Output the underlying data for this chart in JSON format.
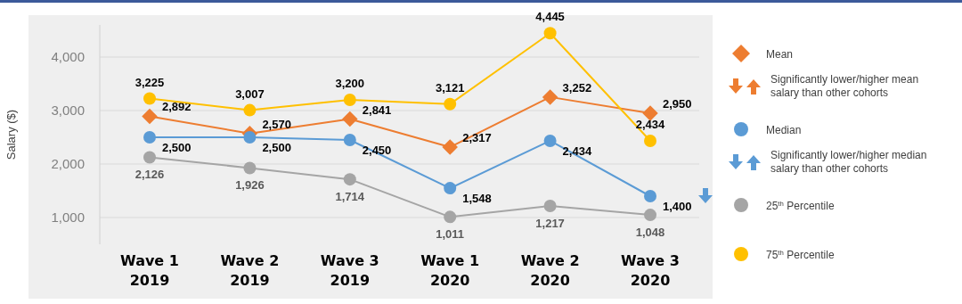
{
  "chart_data": {
    "type": "line",
    "ylabel": "Salary ($)",
    "categories": [
      "Wave 1\n2019",
      "Wave 2\n2019",
      "Wave 3\n2019",
      "Wave 1\n2020",
      "Wave 2\n2020",
      "Wave 3\n2020"
    ],
    "series": [
      {
        "name": "Mean",
        "color": "#ed7d31",
        "marker": "diamond",
        "values": [
          2892,
          2570,
          2841,
          2317,
          3252,
          2950
        ],
        "value_labels": [
          "2,892",
          "2,570",
          "2,841",
          "2,317",
          "3,252",
          "2,950"
        ]
      },
      {
        "name": "Median",
        "color": "#5b9bd5",
        "marker": "circle",
        "values": [
          2500,
          2500,
          2450,
          1548,
          2434,
          1400
        ],
        "value_labels": [
          "2,500",
          "2,500",
          "2,450",
          "1,548",
          "2,434",
          "1,400"
        ]
      },
      {
        "name": "25$^{th}$ Percentile",
        "color": "#a5a5a5",
        "marker": "circle",
        "values": [
          2126,
          1926,
          1714,
          1011,
          1217,
          1048
        ],
        "value_labels": [
          "2,126",
          "1,926",
          "1,714",
          "1,011",
          "1,217",
          "1,048"
        ]
      },
      {
        "name": "75$^{th}$ Percentile",
        "color": "#ffc000",
        "marker": "circle",
        "values": [
          3225,
          3007,
          3200,
          3121,
          4445,
          2434
        ],
        "value_labels": [
          "3,225",
          "3,007",
          "3,200",
          "3,121",
          "4,445",
          "2,434"
        ]
      }
    ],
    "ylim": [
      500,
      4600
    ],
    "yticks": [
      {
        "value": 1000,
        "label": "1,000"
      },
      {
        "value": 2000,
        "label": "2,000"
      },
      {
        "value": 3000,
        "label": "3,000"
      },
      {
        "value": 4000,
        "label": "4,000"
      }
    ],
    "grid": "y",
    "legend": "right",
    "annotations": [
      "Significantly lower/higher mean salary than other cohorts",
      "Significantly lower/higher median salary than other cohorts"
    ]
  }
}
